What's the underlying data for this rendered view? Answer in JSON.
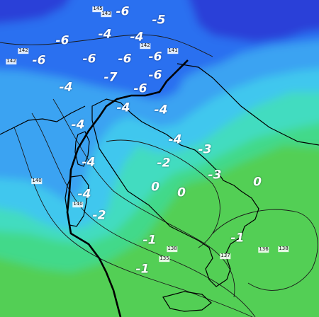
{
  "map": {
    "colors": {
      "cold_deep": "#2a3fd8",
      "cold": "#2b6ff0",
      "cool": "#3aa3f2",
      "mild_cold": "#3fc7ee",
      "neutral": "#43dcc0",
      "mild": "#43d98a",
      "warm": "#52cf55",
      "coast": "#000000",
      "isobar": "#1a1a1a",
      "freezing_line": "#000000"
    },
    "temperature_labels": [
      {
        "id": "t1",
        "text": "-6"
      },
      {
        "id": "t2",
        "text": "-5"
      },
      {
        "id": "t3",
        "text": "-6"
      },
      {
        "id": "t4",
        "text": "-4"
      },
      {
        "id": "t5",
        "text": "-4"
      },
      {
        "id": "t6",
        "text": "-6"
      },
      {
        "id": "t7",
        "text": "-6"
      },
      {
        "id": "t8",
        "text": "-6"
      },
      {
        "id": "t9",
        "text": "-6"
      },
      {
        "id": "t10",
        "text": "-7"
      },
      {
        "id": "t11",
        "text": "-6"
      },
      {
        "id": "t12",
        "text": "-6"
      },
      {
        "id": "t13",
        "text": "-4"
      },
      {
        "id": "t14",
        "text": "-4"
      },
      {
        "id": "t15",
        "text": "-4"
      },
      {
        "id": "t16",
        "text": "-4"
      },
      {
        "id": "t17",
        "text": "-4"
      },
      {
        "id": "t18",
        "text": "-3"
      },
      {
        "id": "t19",
        "text": "-4"
      },
      {
        "id": "t20",
        "text": "-2"
      },
      {
        "id": "t21",
        "text": "-3"
      },
      {
        "id": "t22",
        "text": "0"
      },
      {
        "id": "t23",
        "text": "0"
      },
      {
        "id": "t24",
        "text": "0"
      },
      {
        "id": "t25",
        "text": "-4"
      },
      {
        "id": "t26",
        "text": "-2"
      },
      {
        "id": "t27",
        "text": "-1"
      },
      {
        "id": "t28",
        "text": "-1"
      },
      {
        "id": "t29",
        "text": "-1"
      }
    ],
    "isobar_labels": [
      {
        "id": "p1",
        "text": "145"
      },
      {
        "id": "p2",
        "text": "143"
      },
      {
        "id": "p3",
        "text": "142"
      },
      {
        "id": "p4",
        "text": "141"
      },
      {
        "id": "p5",
        "text": "142"
      },
      {
        "id": "p6",
        "text": "142"
      },
      {
        "id": "p7",
        "text": "140"
      },
      {
        "id": "p8",
        "text": "140"
      },
      {
        "id": "p9",
        "text": "138"
      },
      {
        "id": "p10",
        "text": "138"
      },
      {
        "id": "p11",
        "text": "137"
      },
      {
        "id": "p12",
        "text": "136"
      },
      {
        "id": "p13",
        "text": "135"
      }
    ]
  }
}
